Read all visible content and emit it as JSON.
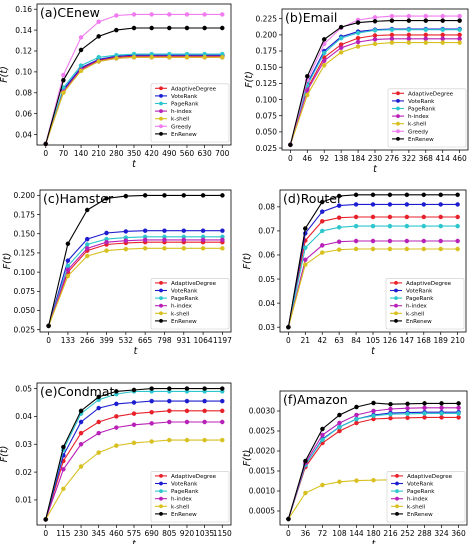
{
  "figure": {
    "background": "#ffffff"
  },
  "series_styles": {
    "AdaptiveDegree": "#e8202a",
    "VoteRank": "#1c1cd0",
    "PageRank": "#2cc6cc",
    "h-index": "#b820b8",
    "k-shell": "#d8c020",
    "Greedy": "#f07cf0",
    "EnRenew": "#000000"
  },
  "chart_data": [
    {
      "type": "line",
      "title": "(a)CEnew",
      "xlabel": "t",
      "ylabel": "F(t)",
      "x": [
        0,
        70,
        140,
        210,
        280,
        350,
        420,
        490,
        560,
        630,
        700
      ],
      "ylim": [
        0.03,
        0.165
      ],
      "yticks": [
        0.04,
        0.06,
        0.08,
        0.1,
        0.12,
        0.14,
        0.16
      ],
      "ytick_labels": [
        "0.04",
        "0.06",
        "0.08",
        "0.10",
        "0.12",
        "0.14",
        "0.16"
      ],
      "legend_position": "lower right",
      "series": [
        {
          "name": "AdaptiveDegree",
          "values": [
            0.031,
            0.082,
            0.103,
            0.111,
            0.114,
            0.115,
            0.115,
            0.115,
            0.115,
            0.115,
            0.115
          ]
        },
        {
          "name": "VoteRank",
          "values": [
            0.031,
            0.083,
            0.104,
            0.112,
            0.115,
            0.116,
            0.116,
            0.116,
            0.116,
            0.116,
            0.116
          ]
        },
        {
          "name": "PageRank",
          "values": [
            0.031,
            0.085,
            0.106,
            0.114,
            0.116,
            0.117,
            0.117,
            0.117,
            0.117,
            0.117,
            0.117
          ]
        },
        {
          "name": "h-index",
          "values": [
            0.031,
            0.081,
            0.102,
            0.11,
            0.113,
            0.114,
            0.114,
            0.114,
            0.114,
            0.114,
            0.114
          ]
        },
        {
          "name": "k-shell",
          "values": [
            0.031,
            0.08,
            0.101,
            0.11,
            0.113,
            0.114,
            0.114,
            0.114,
            0.114,
            0.114,
            0.114
          ]
        },
        {
          "name": "Greedy",
          "values": [
            0.031,
            0.097,
            0.133,
            0.148,
            0.154,
            0.155,
            0.155,
            0.155,
            0.155,
            0.155,
            0.155
          ]
        },
        {
          "name": "EnRenew",
          "values": [
            0.031,
            0.092,
            0.121,
            0.134,
            0.14,
            0.142,
            0.142,
            0.142,
            0.142,
            0.142,
            0.142
          ]
        }
      ]
    },
    {
      "type": "line",
      "title": "(b)Email",
      "xlabel": "t",
      "ylabel": "F(t)",
      "x": [
        0,
        46,
        92,
        138,
        184,
        230,
        276,
        322,
        368,
        414,
        460
      ],
      "ylim": [
        0.022,
        0.24
      ],
      "yticks": [
        0.025,
        0.05,
        0.075,
        0.1,
        0.125,
        0.15,
        0.175,
        0.2,
        0.225
      ],
      "ytick_labels": [
        "0.025",
        "0.050",
        "0.075",
        "0.100",
        "0.125",
        "0.150",
        "0.175",
        "0.200",
        "0.225"
      ],
      "legend_position": "lower right",
      "series": [
        {
          "name": "AdaptiveDegree",
          "values": [
            0.03,
            0.117,
            0.165,
            0.185,
            0.195,
            0.199,
            0.2,
            0.2,
            0.2,
            0.2,
            0.2
          ]
        },
        {
          "name": "VoteRank",
          "values": [
            0.03,
            0.125,
            0.175,
            0.197,
            0.205,
            0.208,
            0.209,
            0.209,
            0.209,
            0.209,
            0.209
          ]
        },
        {
          "name": "PageRank",
          "values": [
            0.03,
            0.122,
            0.172,
            0.195,
            0.203,
            0.207,
            0.208,
            0.208,
            0.208,
            0.208,
            0.208
          ]
        },
        {
          "name": "h-index",
          "values": [
            0.03,
            0.114,
            0.16,
            0.18,
            0.189,
            0.193,
            0.194,
            0.194,
            0.194,
            0.194,
            0.194
          ]
        },
        {
          "name": "k-shell",
          "values": [
            0.03,
            0.107,
            0.153,
            0.173,
            0.182,
            0.186,
            0.188,
            0.188,
            0.188,
            0.188,
            0.188
          ]
        },
        {
          "name": "Greedy",
          "values": [
            0.03,
            0.13,
            0.186,
            0.211,
            0.223,
            0.227,
            0.229,
            0.229,
            0.229,
            0.229,
            0.229
          ]
        },
        {
          "name": "EnRenew",
          "values": [
            0.03,
            0.136,
            0.193,
            0.212,
            0.219,
            0.221,
            0.222,
            0.222,
            0.222,
            0.222,
            0.222
          ]
        }
      ]
    },
    {
      "type": "line",
      "title": "(c)Hamster",
      "xlabel": "t",
      "ylabel": "F(t)",
      "x": [
        0,
        133,
        266,
        399,
        532,
        665,
        798,
        931,
        1064,
        1197
      ],
      "xtick_labels": [
        "0",
        "133",
        "266",
        "399",
        "532",
        "665",
        "798",
        "931",
        "1064",
        "1197"
      ],
      "ylim": [
        0.022,
        0.207
      ],
      "yticks": [
        0.025,
        0.05,
        0.075,
        0.1,
        0.125,
        0.15,
        0.175,
        0.2
      ],
      "ytick_labels": [
        "0.025",
        "0.050",
        "0.075",
        "0.100",
        "0.125",
        "0.150",
        "0.175",
        "0.200"
      ],
      "legend_position": "lower right",
      "series": [
        {
          "name": "AdaptiveDegree",
          "values": [
            0.03,
            0.1,
            0.128,
            0.136,
            0.138,
            0.139,
            0.139,
            0.139,
            0.139,
            0.139
          ]
        },
        {
          "name": "VoteRank",
          "values": [
            0.03,
            0.115,
            0.143,
            0.151,
            0.153,
            0.154,
            0.154,
            0.154,
            0.154,
            0.154
          ]
        },
        {
          "name": "PageRank",
          "values": [
            0.03,
            0.108,
            0.136,
            0.143,
            0.145,
            0.146,
            0.146,
            0.146,
            0.146,
            0.146
          ]
        },
        {
          "name": "h-index",
          "values": [
            0.03,
            0.103,
            0.131,
            0.139,
            0.141,
            0.142,
            0.142,
            0.142,
            0.142,
            0.142
          ]
        },
        {
          "name": "k-shell",
          "values": [
            0.03,
            0.095,
            0.121,
            0.128,
            0.13,
            0.131,
            0.131,
            0.131,
            0.131,
            0.131
          ]
        },
        {
          "name": "EnRenew",
          "values": [
            0.03,
            0.137,
            0.181,
            0.196,
            0.199,
            0.2,
            0.2,
            0.2,
            0.2,
            0.2
          ]
        }
      ]
    },
    {
      "type": "line",
      "title": "(d)Router",
      "xlabel": "t",
      "ylabel": "F(t)",
      "x": [
        0,
        21,
        42,
        63,
        84,
        105,
        126,
        147,
        168,
        189,
        210
      ],
      "ylim": [
        0.028,
        0.087
      ],
      "yticks": [
        0.03,
        0.04,
        0.05,
        0.06,
        0.07,
        0.08
      ],
      "ytick_labels": [
        "0.03",
        "0.04",
        "0.05",
        "0.06",
        "0.07",
        "0.08"
      ],
      "legend_position": "lower right",
      "series": [
        {
          "name": "AdaptiveDegree",
          "values": [
            0.03,
            0.066,
            0.074,
            0.0755,
            0.0758,
            0.0758,
            0.0758,
            0.0758,
            0.0758,
            0.0758,
            0.0758
          ]
        },
        {
          "name": "VoteRank",
          "values": [
            0.03,
            0.069,
            0.078,
            0.0805,
            0.081,
            0.081,
            0.081,
            0.081,
            0.081,
            0.081,
            0.081
          ]
        },
        {
          "name": "PageRank",
          "values": [
            0.03,
            0.063,
            0.07,
            0.0715,
            0.072,
            0.072,
            0.072,
            0.072,
            0.072,
            0.072,
            0.072
          ]
        },
        {
          "name": "h-index",
          "values": [
            0.03,
            0.058,
            0.064,
            0.0655,
            0.0658,
            0.0658,
            0.0658,
            0.0658,
            0.0658,
            0.0658,
            0.0658
          ]
        },
        {
          "name": "k-shell",
          "values": [
            0.03,
            0.056,
            0.061,
            0.0622,
            0.0625,
            0.0625,
            0.0625,
            0.0625,
            0.0625,
            0.0625,
            0.0625
          ]
        },
        {
          "name": "EnRenew",
          "values": [
            0.03,
            0.071,
            0.082,
            0.0845,
            0.085,
            0.085,
            0.085,
            0.085,
            0.085,
            0.085,
            0.085
          ]
        }
      ]
    },
    {
      "type": "line",
      "title": "(e)Condmat",
      "xlabel": "t",
      "ylabel": "F(t)",
      "x": [
        0,
        115,
        230,
        345,
        460,
        575,
        690,
        805,
        920,
        1035,
        1150
      ],
      "xtick_labels": [
        "0",
        "115",
        "230",
        "345",
        "460",
        "575",
        "690",
        "805",
        "920",
        "1035",
        "1150"
      ],
      "ylim": [
        0.001,
        0.052
      ],
      "yticks": [
        0.01,
        0.02,
        0.03,
        0.04,
        0.05
      ],
      "ytick_labels": [
        "0.01",
        "0.02",
        "0.03",
        "0.04",
        "0.05"
      ],
      "legend_position": "lower right",
      "series": [
        {
          "name": "AdaptiveDegree",
          "values": [
            0.003,
            0.024,
            0.034,
            0.038,
            0.04,
            0.041,
            0.0415,
            0.042,
            0.042,
            0.042,
            0.042
          ]
        },
        {
          "name": "VoteRank",
          "values": [
            0.003,
            0.026,
            0.038,
            0.043,
            0.0445,
            0.045,
            0.0455,
            0.0455,
            0.0455,
            0.0455,
            0.0455
          ]
        },
        {
          "name": "PageRank",
          "values": [
            0.003,
            0.028,
            0.041,
            0.046,
            0.048,
            0.049,
            0.049,
            0.049,
            0.049,
            0.049,
            0.049
          ]
        },
        {
          "name": "h-index",
          "values": [
            0.003,
            0.021,
            0.03,
            0.034,
            0.036,
            0.037,
            0.0375,
            0.038,
            0.038,
            0.038,
            0.038
          ]
        },
        {
          "name": "k-shell",
          "values": [
            0.003,
            0.014,
            0.022,
            0.027,
            0.0295,
            0.0305,
            0.031,
            0.0315,
            0.0315,
            0.0315,
            0.0315
          ]
        },
        {
          "name": "EnRenew",
          "values": [
            0.003,
            0.029,
            0.042,
            0.047,
            0.049,
            0.0495,
            0.05,
            0.05,
            0.05,
            0.05,
            0.05
          ]
        }
      ]
    },
    {
      "type": "line",
      "title": "(f)Amazon",
      "xlabel": "t",
      "ylabel": "F(t)",
      "x": [
        0,
        36,
        72,
        108,
        144,
        180,
        216,
        252,
        288,
        324,
        360
      ],
      "ylim": [
        0.00015,
        0.0035
      ],
      "yticks": [
        0.0005,
        0.001,
        0.0015,
        0.002,
        0.0025,
        0.003
      ],
      "ytick_labels": [
        "0.0005",
        "0.0010",
        "0.0015",
        "0.0020",
        "0.0025",
        "0.0030"
      ],
      "legend_position": "lower right",
      "series": [
        {
          "name": "AdaptiveDegree",
          "values": [
            0.0003,
            0.0016,
            0.0022,
            0.0025,
            0.0027,
            0.0028,
            0.00282,
            0.00283,
            0.00284,
            0.00284,
            0.00284
          ]
        },
        {
          "name": "VoteRank",
          "values": [
            0.0003,
            0.00165,
            0.0023,
            0.0026,
            0.0028,
            0.0029,
            0.00295,
            0.00296,
            0.00297,
            0.00297,
            0.00297
          ]
        },
        {
          "name": "PageRank",
          "values": [
            0.0003,
            0.00165,
            0.00228,
            0.0026,
            0.0028,
            0.00288,
            0.00292,
            0.00293,
            0.00294,
            0.00294,
            0.00294
          ]
        },
        {
          "name": "h-index",
          "values": [
            0.0003,
            0.0017,
            0.0024,
            0.0027,
            0.0029,
            0.003,
            0.00305,
            0.00307,
            0.00308,
            0.00308,
            0.00308
          ]
        },
        {
          "name": "k-shell",
          "values": [
            0.0003,
            0.00095,
            0.00115,
            0.00123,
            0.00126,
            0.00127,
            0.00128,
            0.00128,
            0.00128,
            0.00128,
            0.00128
          ]
        },
        {
          "name": "EnRenew",
          "values": [
            0.0003,
            0.00175,
            0.00255,
            0.0029,
            0.0031,
            0.0032,
            0.00317,
            0.00318,
            0.00319,
            0.00319,
            0.00319
          ]
        }
      ]
    }
  ]
}
